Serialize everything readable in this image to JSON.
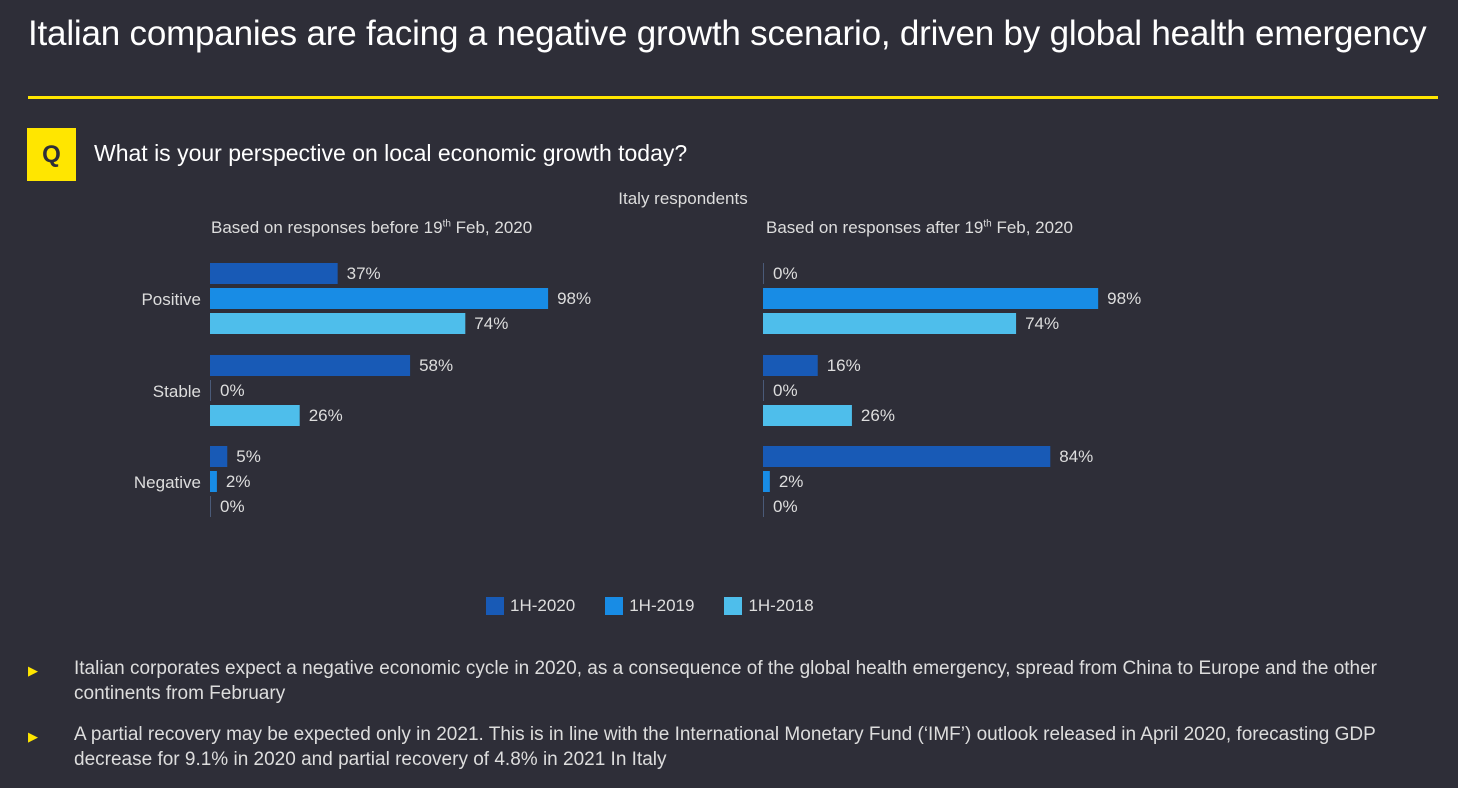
{
  "title": "Italian companies are facing a negative growth scenario, driven by global health emergency",
  "question_badge": "Q",
  "question": "What is your perspective on local economic growth today?",
  "colors": {
    "accent": "#ffe600",
    "1H-2020": "#185ab6",
    "1H-2019": "#188ce5",
    "1H-2018": "#4ebeeb",
    "background": "#2e2e38"
  },
  "chart_data": [
    {
      "type": "bar",
      "orientation": "horizontal",
      "title": "Based on responses before 19th Feb, 2020",
      "title_main": "Based on responses before 19",
      "title_sup": "th",
      "title_tail": " Feb, 2020",
      "supertitle": "Italy respondents",
      "categories": [
        "Positive",
        "Stable",
        "Negative"
      ],
      "series": [
        {
          "name": "1H-2020",
          "values": [
            37,
            58,
            5
          ]
        },
        {
          "name": "1H-2019",
          "values": [
            98,
            0,
            2
          ]
        },
        {
          "name": "1H-2018",
          "values": [
            74,
            26,
            0
          ]
        }
      ],
      "unit": "%",
      "xlim": [
        0,
        100
      ],
      "legend": "bottom"
    },
    {
      "type": "bar",
      "orientation": "horizontal",
      "title": "Based on responses after 19th Feb, 2020",
      "title_main": "Based on responses after 19",
      "title_sup": "th",
      "title_tail": " Feb, 2020",
      "categories": [
        "Positive",
        "Stable",
        "Negative"
      ],
      "series": [
        {
          "name": "1H-2020",
          "values": [
            0,
            16,
            84
          ]
        },
        {
          "name": "1H-2019",
          "values": [
            98,
            0,
            2
          ]
        },
        {
          "name": "1H-2018",
          "values": [
            74,
            26,
            0
          ]
        }
      ],
      "unit": "%",
      "xlim": [
        0,
        100
      ],
      "legend": "bottom"
    }
  ],
  "legend": [
    {
      "label": "1H-2020",
      "color": "#185ab6"
    },
    {
      "label": "1H-2019",
      "color": "#188ce5"
    },
    {
      "label": "1H-2018",
      "color": "#4ebeeb"
    }
  ],
  "bullets": [
    "Italian corporates expect a negative economic cycle in 2020, as a consequence of the global health emergency, spread from China to Europe and the other continents from February",
    "A partial recovery may be expected only in 2021. This is in line with the International Monetary Fund (‘IMF’) outlook released in April 2020, forecasting GDP decrease for 9.1% in 2020 and partial recovery of 4.8% in 2021 In Italy"
  ]
}
